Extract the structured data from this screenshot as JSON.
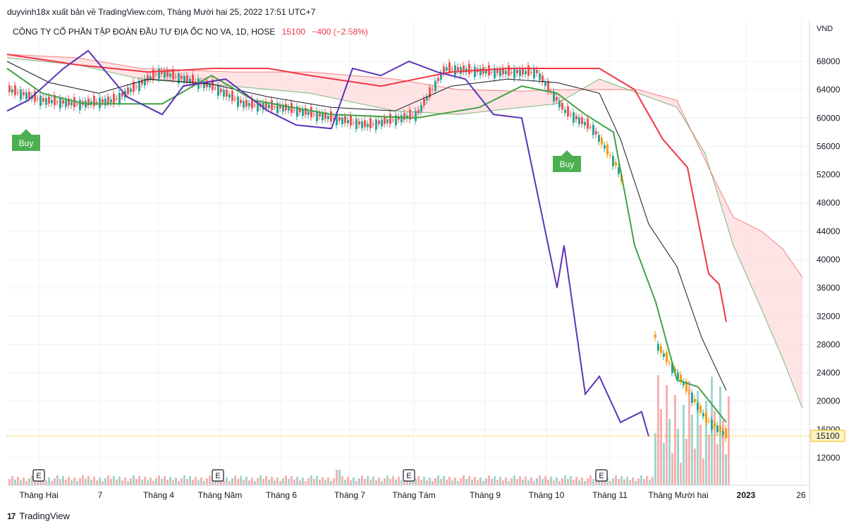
{
  "header": {
    "published": "duyvinh18x xuất bản về TradingView.com, Tháng Mười hai 25, 2022 17:51 UTC+7"
  },
  "legend": {
    "symbol": "CÔNG TY CỔ PHẦN TẬP ĐOÀN ĐẦU TƯ ĐỊA ỐC NO VA, 1D, HOSE",
    "last": "15100",
    "change": "−400 (−2.58%)"
  },
  "footer": {
    "brand": "TradingView",
    "logo": "17"
  },
  "colors": {
    "up": "#26a69a",
    "down": "#ef5350",
    "conversion": "#131722",
    "base_line": "#f23645",
    "lagging_span": "#5b34b5",
    "leading_green": "#43a047",
    "cloud_bull": "#c8e6c9",
    "cloud_bear": "#ffcdd2",
    "grid": "#eef0f3",
    "buy": "#4caf50",
    "last_price_line": "#f5b800"
  },
  "chart_data": {
    "type": "candlestick",
    "currency": "VND",
    "ylim": [
      8000,
      70000
    ],
    "y_ticks": [
      "12000",
      "16000",
      "20000",
      "24000",
      "28000",
      "32000",
      "36000",
      "40000",
      "44000",
      "48000",
      "52000",
      "56000",
      "60000",
      "64000",
      "68000"
    ],
    "x_ticks": [
      "Tháng Hai",
      "7",
      "Tháng 4",
      "Tháng Năm",
      "Tháng 6",
      "Tháng 7",
      "Tháng Tám",
      "Tháng 9",
      "Tháng 10",
      "Tháng 11",
      "Tháng Mười hai",
      "2023",
      "26"
    ],
    "last_price": 15100,
    "last_price_label": "15100",
    "markers": [
      {
        "type": "buy",
        "label": "Buy",
        "date": "Jan 31"
      },
      {
        "type": "buy",
        "label": "Buy",
        "date": "Oct 03"
      }
    ],
    "earnings": [
      {
        "label": "E",
        "date": "Jan 28"
      },
      {
        "label": "E",
        "date": "Apr 28"
      },
      {
        "label": "E",
        "date": "Jul 28"
      },
      {
        "label": "E",
        "date": "Oct 28"
      }
    ],
    "price_close_approx": {
      "x": [
        "Jan",
        "Feb",
        "Mar",
        "Apr",
        "May",
        "Jun",
        "Jul",
        "Aug",
        "Sep",
        "Early Oct",
        "Mid Oct",
        "Late Oct",
        "Early Nov",
        "Mid Nov",
        "Early Dec",
        "Mid Dec",
        "Dec 23"
      ],
      "y": [
        64000,
        62000,
        62500,
        66500,
        65000,
        62000,
        59000,
        60000,
        67000,
        61000,
        58500,
        53000,
        45000,
        28000,
        23000,
        17500,
        15100
      ]
    },
    "ichimoku": {
      "conversion_line_approx": {
        "x": [
          "Jan",
          "Feb",
          "Mar",
          "Apr",
          "May",
          "Jun",
          "Jul",
          "Aug",
          "Sep",
          "Oct",
          "Nov",
          "Dec",
          "Dec 23"
        ],
        "y": [
          68000,
          64000,
          63000,
          65500,
          64000,
          62500,
          61000,
          61500,
          65000,
          63500,
          52000,
          37000,
          21500
        ]
      },
      "base_line_approx": {
        "x": [
          "Jan",
          "Feb",
          "Mar",
          "Apr",
          "May",
          "Jun",
          "Jul",
          "Aug",
          "Sep",
          "Oct",
          "Nov",
          "Dec",
          "Dec 23"
        ],
        "y": [
          69000,
          68000,
          66000,
          67000,
          67000,
          66500,
          65000,
          64500,
          66500,
          67000,
          66500,
          57000,
          31200
        ]
      },
      "lagging_span_approx": {
        "x": [
          "Jan",
          "Feb",
          "Mar",
          "Apr",
          "May",
          "Jun",
          "Jul",
          "Aug",
          "Sep",
          "Oct",
          "Nov",
          "Dec"
        ],
        "y": [
          62000,
          64000,
          68000,
          61000,
          61000,
          59000,
          66000,
          67000,
          60500,
          36000,
          21000,
          15500
        ]
      }
    }
  }
}
